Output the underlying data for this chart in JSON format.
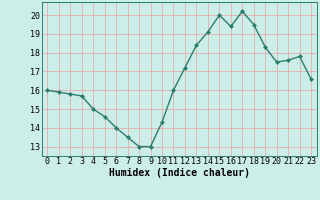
{
  "x": [
    0,
    1,
    2,
    3,
    4,
    5,
    6,
    7,
    8,
    9,
    10,
    11,
    12,
    13,
    14,
    15,
    16,
    17,
    18,
    19,
    20,
    21,
    22,
    23
  ],
  "y": [
    16.0,
    15.9,
    15.8,
    15.7,
    15.0,
    14.6,
    14.0,
    13.5,
    13.0,
    13.0,
    14.3,
    16.0,
    17.2,
    18.4,
    19.1,
    20.0,
    19.4,
    20.2,
    19.5,
    18.3,
    17.5,
    17.6,
    17.8,
    16.6
  ],
  "line_color": "#2d7d6e",
  "marker": "D",
  "markersize": 2.0,
  "linewidth": 1.0,
  "bg_color": "#cceee8",
  "grid_color": "#e8a0a0",
  "xlabel": "Humidex (Indice chaleur)",
  "xlabel_fontsize": 7,
  "xlabel_fontweight": "bold",
  "yticks": [
    13,
    14,
    15,
    16,
    17,
    18,
    19,
    20
  ],
  "xticks": [
    0,
    1,
    2,
    3,
    4,
    5,
    6,
    7,
    8,
    9,
    10,
    11,
    12,
    13,
    14,
    15,
    16,
    17,
    18,
    19,
    20,
    21,
    22,
    23
  ],
  "ylim": [
    12.5,
    20.7
  ],
  "xlim": [
    -0.5,
    23.5
  ],
  "tick_fontsize": 6.0,
  "spine_color": "#2d7d6e"
}
